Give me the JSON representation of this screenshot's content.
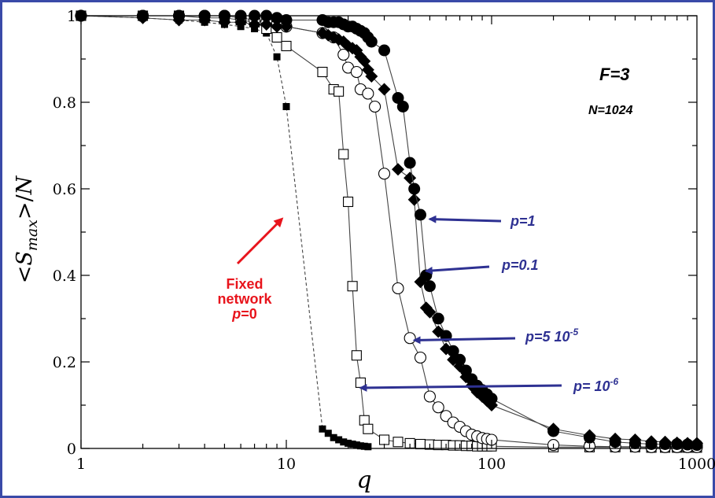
{
  "chart_data": {
    "type": "scatter",
    "title": "",
    "xlabel": "q",
    "ylabel": "<S_max>/N",
    "x_scale": "log",
    "xlim": [
      1,
      1000
    ],
    "ylim": [
      0,
      1
    ],
    "x_ticks": [
      "1",
      "10",
      "100",
      "1000"
    ],
    "y_ticks": [
      "0",
      "0.2",
      "0.4",
      "0.6",
      "0.8",
      "1"
    ],
    "colors": {
      "arrow_blue": "#2e3192",
      "arrow_red": "#e8141c",
      "frame": "#3a4aa8"
    },
    "series": [
      {
        "marker": "filled-square",
        "line": "dashed",
        "x": [
          1,
          2,
          3,
          4,
          5,
          6,
          7,
          8,
          9,
          10,
          15,
          16,
          17,
          18,
          19,
          20,
          21,
          22,
          23,
          24,
          25
        ],
        "y": [
          1.0,
          0.995,
          0.99,
          0.985,
          0.98,
          0.975,
          0.97,
          0.96,
          0.905,
          0.79,
          0.045,
          0.035,
          0.025,
          0.02,
          0.015,
          0.012,
          0.01,
          0.008,
          0.006,
          0.005,
          0.004
        ]
      },
      {
        "marker": "open-square",
        "line": "solid",
        "x": [
          1,
          2,
          3,
          4,
          5,
          6,
          7,
          8,
          9,
          10,
          15,
          17,
          18,
          19,
          20,
          21,
          22,
          23,
          24,
          25,
          30,
          35,
          40,
          45,
          50,
          55,
          60,
          65,
          70,
          75,
          80,
          85,
          90,
          95,
          100,
          200,
          300,
          400,
          500,
          600,
          700,
          800,
          900,
          1000
        ],
        "y": [
          1.0,
          1.0,
          1.0,
          0.995,
          0.995,
          0.99,
          0.985,
          0.97,
          0.95,
          0.93,
          0.87,
          0.83,
          0.825,
          0.68,
          0.57,
          0.375,
          0.215,
          0.152,
          0.065,
          0.045,
          0.02,
          0.015,
          0.012,
          0.01,
          0.009,
          0.008,
          0.008,
          0.007,
          0.007,
          0.006,
          0.006,
          0.005,
          0.005,
          0.005,
          0.005,
          0.003,
          0.003,
          0.003,
          0.003,
          0.002,
          0.002,
          0.002,
          0.002,
          0.002
        ]
      },
      {
        "marker": "open-circle",
        "line": "solid",
        "x": [
          1,
          2,
          3,
          4,
          5,
          6,
          7,
          8,
          9,
          10,
          15,
          17,
          19,
          20,
          22,
          23,
          25,
          27,
          30,
          35,
          40,
          45,
          50,
          55,
          60,
          65,
          70,
          75,
          80,
          85,
          90,
          95,
          100,
          200,
          300,
          400,
          500,
          600,
          700,
          800,
          900,
          1000
        ],
        "y": [
          1.0,
          1.0,
          1.0,
          1.0,
          1.0,
          0.995,
          0.99,
          0.985,
          0.98,
          0.975,
          0.96,
          0.95,
          0.91,
          0.88,
          0.87,
          0.83,
          0.82,
          0.79,
          0.635,
          0.37,
          0.255,
          0.21,
          0.12,
          0.095,
          0.075,
          0.06,
          0.05,
          0.04,
          0.032,
          0.028,
          0.024,
          0.022,
          0.02,
          0.008,
          0.005,
          0.004,
          0.004,
          0.003,
          0.003,
          0.003,
          0.003,
          0.003
        ]
      },
      {
        "marker": "filled-diamond",
        "line": "solid",
        "x": [
          1,
          2,
          3,
          4,
          5,
          6,
          7,
          8,
          9,
          10,
          15,
          16,
          17,
          18,
          19,
          20,
          21,
          22,
          23,
          24,
          25,
          26,
          30,
          35,
          40,
          42,
          45,
          48,
          50,
          55,
          60,
          65,
          70,
          75,
          80,
          85,
          90,
          95,
          100,
          200,
          300,
          400,
          500,
          600,
          700,
          800,
          900,
          1000
        ],
        "y": [
          1.0,
          0.995,
          0.99,
          0.99,
          0.985,
          0.985,
          0.98,
          0.98,
          0.975,
          0.975,
          0.96,
          0.955,
          0.95,
          0.945,
          0.94,
          0.93,
          0.925,
          0.92,
          0.905,
          0.895,
          0.875,
          0.86,
          0.83,
          0.645,
          0.625,
          0.575,
          0.385,
          0.325,
          0.315,
          0.27,
          0.23,
          0.205,
          0.19,
          0.165,
          0.145,
          0.13,
          0.12,
          0.11,
          0.1,
          0.045,
          0.03,
          0.022,
          0.02,
          0.016,
          0.015,
          0.013,
          0.012,
          0.012
        ]
      },
      {
        "marker": "filled-circle",
        "line": "solid",
        "x": [
          1,
          2,
          3,
          4,
          5,
          6,
          7,
          8,
          9,
          10,
          15,
          16,
          17,
          18,
          19,
          20,
          21,
          22,
          23,
          24,
          25,
          26,
          30,
          35,
          37,
          40,
          42,
          45,
          48,
          50,
          55,
          60,
          65,
          70,
          75,
          80,
          85,
          90,
          95,
          100,
          200,
          300,
          400,
          500,
          600,
          700,
          800,
          900,
          1000
        ],
        "y": [
          1.0,
          1.0,
          1.0,
          1.0,
          1.0,
          1.0,
          1.0,
          1.0,
          0.995,
          0.99,
          0.99,
          0.985,
          0.985,
          0.985,
          0.98,
          0.975,
          0.975,
          0.97,
          0.965,
          0.96,
          0.95,
          0.94,
          0.92,
          0.81,
          0.79,
          0.66,
          0.6,
          0.54,
          0.4,
          0.375,
          0.3,
          0.26,
          0.225,
          0.205,
          0.18,
          0.16,
          0.145,
          0.135,
          0.125,
          0.115,
          0.04,
          0.025,
          0.015,
          0.012,
          0.01,
          0.01,
          0.01,
          0.009,
          0.008
        ]
      }
    ],
    "annotations": [
      {
        "text": "F=3",
        "style": "corner-label"
      },
      {
        "text": "N=1024",
        "style": "corner-label"
      },
      {
        "text": "p=1",
        "arrow_color": "#2e3192",
        "arrow_to": [
          50,
          0.53
        ]
      },
      {
        "text": "p=0.1",
        "arrow_color": "#2e3192",
        "arrow_to": [
          48,
          0.41
        ]
      },
      {
        "text": "p=5 10",
        "superscript": "-5",
        "arrow_color": "#2e3192",
        "arrow_to": [
          42,
          0.25
        ]
      },
      {
        "text": "p= 10",
        "superscript": "-6",
        "arrow_color": "#2e3192",
        "arrow_to": [
          23,
          0.14
        ]
      },
      {
        "lines": [
          "Fixed",
          "network",
          "=0"
        ],
        "italic_prefix": "p",
        "arrow_color": "#e8141c",
        "arrow_to": [
          9.5,
          0.53
        ]
      }
    ]
  }
}
